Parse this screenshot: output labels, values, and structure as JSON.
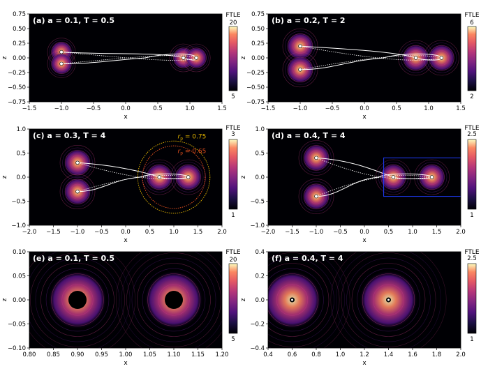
{
  "figure": {
    "colorbar_label": "FTLE",
    "colors": {
      "background": "#000004",
      "frame": "#000000",
      "text": "#ffffff",
      "orbit": "#ffffff",
      "ring_outer": "#e3b400",
      "ring_inner": "#e04e1e",
      "box": "#1f3cff"
    }
  },
  "chart_data": [
    {
      "type": "heatmap",
      "panel": "a",
      "title": "(a) a = 0.1, T = 0.5",
      "xlabel": "x",
      "ylabel": "z",
      "xlim": [
        -1.5,
        1.5
      ],
      "ylim": [
        -0.75,
        0.75
      ],
      "xticks": [
        -1.5,
        -1.0,
        -0.5,
        0.0,
        0.5,
        1.0,
        1.5
      ],
      "yticks": [
        -0.75,
        -0.5,
        -0.25,
        0.0,
        0.25,
        0.5,
        0.75
      ],
      "xtick_labels": [
        "−1.5",
        "−1.0",
        "−0.5",
        "0.0",
        "0.5",
        "1.0",
        "1.5"
      ],
      "ytick_labels": [
        "−0.75",
        "−0.50",
        "−0.25",
        "0.00",
        "0.25",
        "0.50",
        "0.75"
      ],
      "colorbar": {
        "label": "FTLE",
        "min": 5,
        "max": 20,
        "tick_labels": [
          "20",
          "5"
        ]
      },
      "bodies": [
        {
          "x": -1.0,
          "z": 0.1
        },
        {
          "x": -1.0,
          "z": -0.1
        },
        {
          "x": 0.9,
          "z": 0.0
        },
        {
          "x": 1.1,
          "z": 0.0
        }
      ]
    },
    {
      "type": "heatmap",
      "panel": "b",
      "title": "(b) a = 0.2, T = 2",
      "xlabel": "x",
      "ylabel": "z",
      "xlim": [
        -1.5,
        1.5
      ],
      "ylim": [
        -0.75,
        0.75
      ],
      "xticks": [
        -1.5,
        -1.0,
        -0.5,
        0.0,
        0.5,
        1.0,
        1.5
      ],
      "yticks": [
        -0.75,
        -0.5,
        -0.25,
        0.0,
        0.25,
        0.5,
        0.75
      ],
      "xtick_labels": [
        "−1.5",
        "−1.0",
        "−0.5",
        "0.0",
        "0.5",
        "1.0",
        "1.5"
      ],
      "ytick_labels": [
        "−0.75",
        "−0.50",
        "−0.25",
        "0.00",
        "0.25",
        "0.50",
        "0.75"
      ],
      "colorbar": {
        "label": "FTLE",
        "min": 2,
        "max": 6,
        "tick_labels": [
          "6",
          "2"
        ]
      },
      "bodies": [
        {
          "x": -1.0,
          "z": 0.2
        },
        {
          "x": -1.0,
          "z": -0.2
        },
        {
          "x": 0.8,
          "z": 0.0
        },
        {
          "x": 1.2,
          "z": 0.0
        }
      ]
    },
    {
      "type": "heatmap",
      "panel": "c",
      "title": "(c) a = 0.3, T = 4",
      "xlabel": "x",
      "ylabel": "z",
      "xlim": [
        -2.0,
        2.0
      ],
      "ylim": [
        -1.0,
        1.0
      ],
      "xticks": [
        -2.0,
        -1.5,
        -1.0,
        -0.5,
        0.0,
        0.5,
        1.0,
        1.5,
        2.0
      ],
      "yticks": [
        -1.0,
        -0.5,
        0.0,
        0.5,
        1.0
      ],
      "xtick_labels": [
        "−2.0",
        "−1.5",
        "−1.0",
        "−0.5",
        "0.0",
        "0.5",
        "1.0",
        "1.5",
        "2.0"
      ],
      "ytick_labels": [
        "−1.0",
        "−0.5",
        "0.0",
        "0.5",
        "1.0"
      ],
      "colorbar": {
        "label": "FTLE",
        "min": 1,
        "max": 3,
        "tick_labels": [
          "3",
          "1"
        ]
      },
      "bodies": [
        {
          "x": -1.0,
          "z": 0.3
        },
        {
          "x": -1.0,
          "z": -0.3
        },
        {
          "x": 0.7,
          "z": 0.0
        },
        {
          "x": 1.3,
          "z": 0.0
        }
      ],
      "annotations": [
        {
          "text": "r",
          "sub": "p",
          "value": " = 0.75",
          "radius": 0.75
        },
        {
          "text": "r",
          "sub": "p",
          "value": " = 0.65",
          "radius": 0.65
        }
      ]
    },
    {
      "type": "heatmap",
      "panel": "d",
      "title": "(d) a = 0.4, T = 4",
      "xlabel": "x",
      "ylabel": "z",
      "xlim": [
        -2.0,
        2.0
      ],
      "ylim": [
        -1.0,
        1.0
      ],
      "xticks": [
        -2.0,
        -1.5,
        -1.0,
        -0.5,
        0.0,
        0.5,
        1.0,
        1.5,
        2.0
      ],
      "yticks": [
        -1.0,
        -0.5,
        0.0,
        0.5,
        1.0
      ],
      "xtick_labels": [
        "−2.0",
        "−1.5",
        "−1.0",
        "−0.5",
        "0.0",
        "0.5",
        "1.0",
        "1.5",
        "2.0"
      ],
      "ytick_labels": [
        "−1.0",
        "−0.5",
        "0.0",
        "0.5",
        "1.0"
      ],
      "colorbar": {
        "label": "FTLE",
        "min": 1,
        "max": 2.5,
        "tick_labels": [
          "2.5",
          "1"
        ]
      },
      "bodies": [
        {
          "x": -1.0,
          "z": 0.4
        },
        {
          "x": -1.0,
          "z": -0.4
        },
        {
          "x": 0.6,
          "z": 0.0
        },
        {
          "x": 1.4,
          "z": 0.0
        }
      ],
      "zoom_box": {
        "x": [
          0.4,
          2.0
        ],
        "z": [
          -0.4,
          0.4
        ]
      }
    },
    {
      "type": "heatmap",
      "panel": "e",
      "title": "(e) a = 0.1, T = 0.5",
      "xlabel": "x",
      "ylabel": "z",
      "xlim": [
        0.8,
        1.2
      ],
      "ylim": [
        -0.1,
        0.1
      ],
      "xticks": [
        0.8,
        0.85,
        0.9,
        0.95,
        1.0,
        1.05,
        1.1,
        1.15,
        1.2
      ],
      "yticks": [
        -0.1,
        -0.05,
        0.0,
        0.05,
        0.1
      ],
      "xtick_labels": [
        "0.80",
        "0.85",
        "0.90",
        "0.95",
        "1.00",
        "1.05",
        "1.10",
        "1.15",
        "1.20"
      ],
      "ytick_labels": [
        "−0.10",
        "−0.05",
        "0.00",
        "0.05",
        "0.10"
      ],
      "colorbar": {
        "label": "FTLE",
        "min": 5,
        "max": 20,
        "tick_labels": [
          "20",
          "5"
        ]
      },
      "bodies": [
        {
          "x": 0.9,
          "z": 0.0
        },
        {
          "x": 1.1,
          "z": 0.0
        }
      ]
    },
    {
      "type": "heatmap",
      "panel": "f",
      "title": "(f) a = 0.4, T = 4",
      "xlabel": "x",
      "ylabel": "z",
      "xlim": [
        0.4,
        2.0
      ],
      "ylim": [
        -0.4,
        0.4
      ],
      "xticks": [
        0.4,
        0.6,
        0.8,
        1.0,
        1.2,
        1.4,
        1.6,
        1.8,
        2.0
      ],
      "yticks": [
        -0.4,
        -0.2,
        0.0,
        0.2,
        0.4
      ],
      "xtick_labels": [
        "0.4",
        "0.6",
        "0.8",
        "1.0",
        "1.2",
        "1.4",
        "1.6",
        "1.8",
        "2.0"
      ],
      "ytick_labels": [
        "−0.4",
        "−0.2",
        "0.0",
        "0.2",
        "0.4"
      ],
      "colorbar": {
        "label": "FTLE",
        "min": 1,
        "max": 2.5,
        "tick_labels": [
          "2.5",
          "1"
        ]
      },
      "bodies": [
        {
          "x": 0.6,
          "z": 0.0
        },
        {
          "x": 1.4,
          "z": 0.0
        }
      ]
    }
  ]
}
